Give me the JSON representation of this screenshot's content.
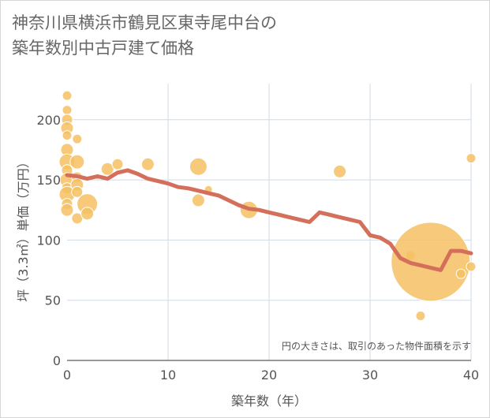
{
  "title_line1": "神奈川県横浜市鶴見区東寺尾中台の",
  "title_line2": "築年数別中古戸建て価格",
  "colors": {
    "bubble_fill": "#f5c163",
    "bubble_stroke": "#ffffff",
    "line": "#d46f5b",
    "grid": "#cfdbe6",
    "axis": "#333333"
  },
  "chart_data": {
    "type": "scatter",
    "xlabel": "築年数（年）",
    "ylabel": "坪（3.3㎡）単価（万円）",
    "xlim": [
      0,
      40
    ],
    "ylim": [
      0,
      230
    ],
    "xticks": [
      "0",
      "10",
      "20",
      "30",
      "40"
    ],
    "xtick_values": [
      0,
      10,
      20,
      30,
      40
    ],
    "yticks": [
      "0",
      "50",
      "100",
      "150",
      "200"
    ],
    "ytick_values": [
      0,
      50,
      100,
      150,
      200
    ],
    "note": "円の大きさは、取引のあった物件面積を示す",
    "grid": true,
    "bubbles": [
      {
        "x": 0,
        "y": 220,
        "r": 6
      },
      {
        "x": 0,
        "y": 208,
        "r": 6
      },
      {
        "x": 0,
        "y": 200,
        "r": 7
      },
      {
        "x": 0,
        "y": 193,
        "r": 8
      },
      {
        "x": 0,
        "y": 187,
        "r": 6
      },
      {
        "x": 0,
        "y": 175,
        "r": 8
      },
      {
        "x": 0,
        "y": 165,
        "r": 10
      },
      {
        "x": 0,
        "y": 158,
        "r": 7
      },
      {
        "x": 0,
        "y": 150,
        "r": 9
      },
      {
        "x": 0,
        "y": 143,
        "r": 7
      },
      {
        "x": 0,
        "y": 138,
        "r": 10
      },
      {
        "x": 0,
        "y": 130,
        "r": 7
      },
      {
        "x": 0,
        "y": 125,
        "r": 8
      },
      {
        "x": 1,
        "y": 184,
        "r": 6
      },
      {
        "x": 1,
        "y": 165,
        "r": 9
      },
      {
        "x": 1,
        "y": 152,
        "r": 7
      },
      {
        "x": 1,
        "y": 146,
        "r": 8
      },
      {
        "x": 1,
        "y": 140,
        "r": 7
      },
      {
        "x": 1,
        "y": 118,
        "r": 7
      },
      {
        "x": 2,
        "y": 130,
        "r": 13
      },
      {
        "x": 2,
        "y": 122,
        "r": 8
      },
      {
        "x": 4,
        "y": 159,
        "r": 8
      },
      {
        "x": 5,
        "y": 163,
        "r": 7
      },
      {
        "x": 8,
        "y": 163,
        "r": 8
      },
      {
        "x": 13,
        "y": 161,
        "r": 11
      },
      {
        "x": 13,
        "y": 133,
        "r": 8
      },
      {
        "x": 14,
        "y": 142,
        "r": 5
      },
      {
        "x": 18,
        "y": 125,
        "r": 11
      },
      {
        "x": 27,
        "y": 157,
        "r": 8
      },
      {
        "x": 34,
        "y": 87,
        "r": 6
      },
      {
        "x": 35,
        "y": 37,
        "r": 6
      },
      {
        "x": 36,
        "y": 82,
        "r": 50
      },
      {
        "x": 39,
        "y": 72,
        "r": 6
      },
      {
        "x": 40,
        "y": 168,
        "r": 6
      },
      {
        "x": 40,
        "y": 78,
        "r": 6
      }
    ],
    "series": [
      {
        "x": [
          0,
          1,
          2,
          3,
          4,
          5,
          6,
          7,
          8,
          9,
          10,
          11,
          12,
          13,
          14,
          15,
          16,
          17,
          18,
          19,
          20,
          21,
          22,
          23,
          24,
          25,
          26,
          27,
          28,
          29,
          30,
          31,
          32,
          33,
          34,
          35,
          36,
          37,
          38,
          39,
          40
        ],
        "values": [
          154,
          153,
          151,
          153,
          151,
          156,
          158,
          155,
          151,
          149,
          147,
          144,
          143,
          141,
          139,
          137,
          133,
          129,
          126,
          125,
          123,
          121,
          119,
          117,
          115,
          123,
          121,
          119,
          117,
          115,
          104,
          102,
          97,
          85,
          81,
          79,
          77,
          75,
          91,
          91,
          89
        ]
      }
    ]
  }
}
